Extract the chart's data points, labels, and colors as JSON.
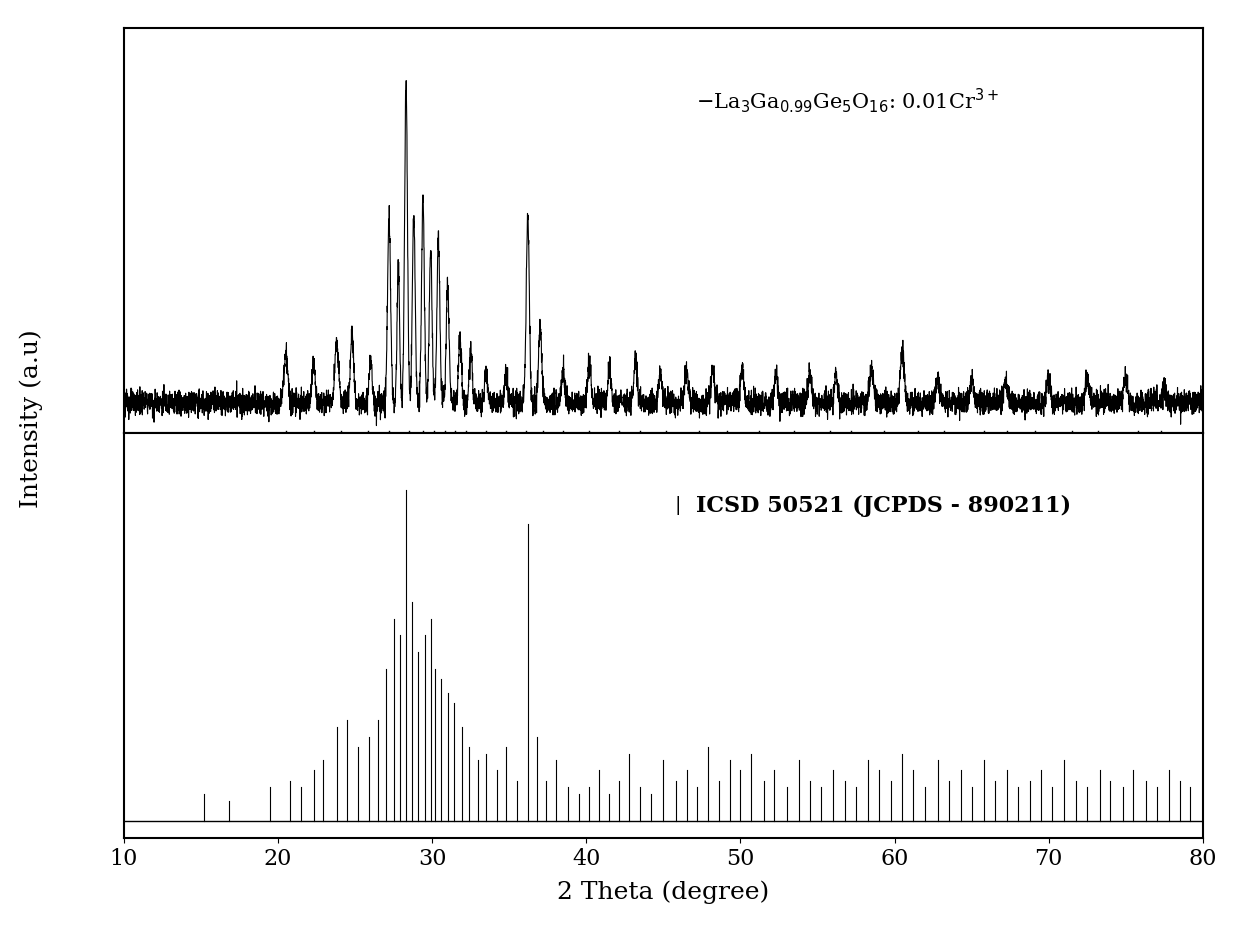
{
  "xlim": [
    10,
    80
  ],
  "xticks": [
    10,
    20,
    30,
    40,
    50,
    60,
    70,
    80
  ],
  "xlabel": "2 Theta (degree)",
  "ylabel": "Intensity (a.u)",
  "xlabel_fontsize": 18,
  "ylabel_fontsize": 18,
  "tick_fontsize": 16,
  "label1": "$-$La$_3$Ga$_{0.99}$Ge$_5$O$_{16}$: 0.01Cr$^{3+}$",
  "label2": "ICSD 50521 (JCPDS - 890211)",
  "background_color": "#ffffff",
  "line_color": "#000000",
  "tick_marks_positions": [
    20.5,
    22.3,
    24.1,
    25.8,
    27.2,
    28.5,
    29.4,
    30.1,
    30.8,
    31.5,
    32.2,
    33.5,
    34.8,
    36.1,
    37.2,
    38.5,
    40.2,
    42.1,
    43.5,
    45.2,
    47.3,
    49.1,
    51.2,
    53.5,
    55.8,
    57.2,
    59.3,
    61.5,
    63.2,
    65.8,
    67.3,
    69.1,
    71.5,
    73.2,
    75.8,
    77.3
  ]
}
